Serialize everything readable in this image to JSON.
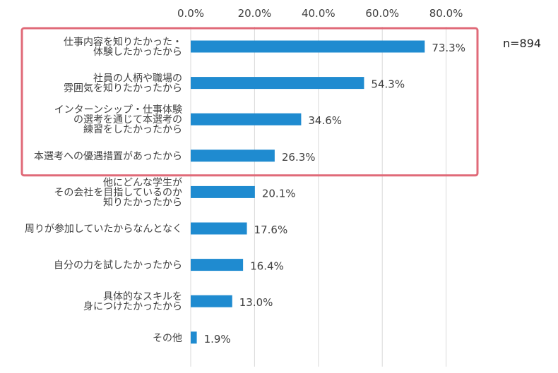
{
  "chart_data": {
    "type": "bar",
    "orientation": "horizontal",
    "categories": [
      [
        "仕事内容を知りたかった・",
        "体験したかったから"
      ],
      [
        "社員の人柄や職場の",
        "雰囲気を知りたかったから"
      ],
      [
        "インターンシップ・仕事体験",
        "の選考を通じて本選考の",
        "練習をしたかったから"
      ],
      [
        "本選考への優遇措置があったから"
      ],
      [
        "他にどんな学生が",
        "その会社を目指しているのか",
        "知りたかったから"
      ],
      [
        "周りが参加していたからなんとなく"
      ],
      [
        "自分の力を試したかったから"
      ],
      [
        "具体的なスキルを",
        "身につけたかったから"
      ],
      [
        "その他"
      ]
    ],
    "values": [
      73.3,
      54.3,
      34.6,
      26.3,
      20.1,
      17.6,
      16.4,
      13.0,
      1.9
    ],
    "value_labels": [
      "73.3%",
      "54.3%",
      "34.6%",
      "26.3%",
      "20.1%",
      "17.6%",
      "16.4%",
      "13.0%",
      "1.9%"
    ],
    "xticks": [
      0,
      20,
      40,
      60,
      80
    ],
    "xtick_labels": [
      "0.0%",
      "20.0%",
      "40.0%",
      "60.0%",
      "80.0%"
    ],
    "xlim": [
      0,
      80
    ],
    "axis_position": "top",
    "grid": "vertical",
    "highlighted_categories": [
      0,
      1,
      2,
      3
    ],
    "annotation": "n=894",
    "colors": {
      "bar": "#1f8bd0",
      "grid": "#d9d9d9",
      "highlight_box": "#e06a78"
    }
  }
}
